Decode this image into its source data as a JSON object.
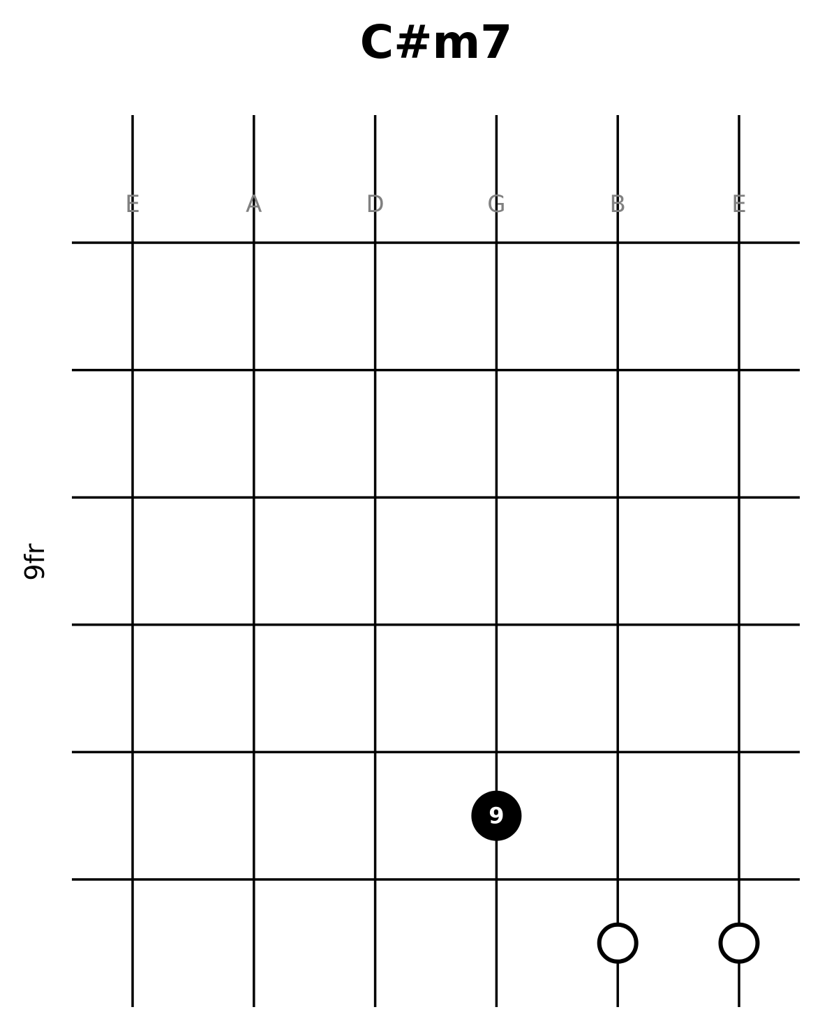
{
  "chord": {
    "name": "C#m7",
    "fret_position_label": "9fr",
    "string_names": [
      "E",
      "A",
      "D",
      "G",
      "B",
      "E"
    ],
    "frets_shown": 6,
    "fretted_notes": [
      {
        "string_index": 3,
        "fret_row": 5,
        "label": "9"
      }
    ],
    "open_strings": [
      {
        "string_index": 4
      },
      {
        "string_index": 5
      }
    ]
  },
  "colors": {
    "line": "#000000",
    "string_label": "#808080",
    "dot_fill": "#000000",
    "dot_text": "#ffffff",
    "background": "#ffffff"
  }
}
